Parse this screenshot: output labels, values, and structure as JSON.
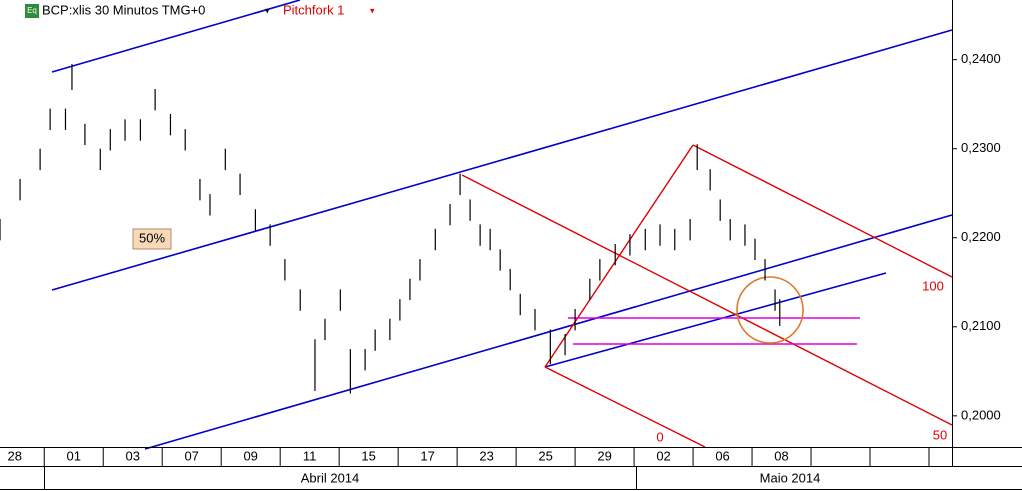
{
  "header": {
    "icon": "Eq",
    "title": "BCP:xlis 30 Minutos TMG+0",
    "study": "Pitchfork 1"
  },
  "chart_data": {
    "type": "ohlc",
    "categories": [
      "28",
      "01",
      "03",
      "07",
      "09",
      "11",
      "15",
      "17",
      "23",
      "25",
      "29",
      "02",
      "06",
      "08",
      null,
      null
    ],
    "months": [
      "Abril 2014",
      "Maio 2014"
    ],
    "xlim": [
      0.25,
      16.39
    ],
    "ylim": [
      0.1965,
      0.2467
    ],
    "yticks": [
      {
        "value": 0.2,
        "label": "0,2000"
      },
      {
        "value": 0.21,
        "label": "0,2100"
      },
      {
        "value": 0.22,
        "label": "0,2200"
      },
      {
        "value": 0.23,
        "label": "0,2300"
      },
      {
        "value": 0.24,
        "label": "0,2400"
      }
    ],
    "color": "#000000",
    "x": [
      0.25,
      0.59,
      0.93,
      1.1,
      1.36,
      1.47,
      1.69,
      1.95,
      2.12,
      2.37,
      2.63,
      2.88,
      3.14,
      3.39,
      3.64,
      3.81,
      4.07,
      4.32,
      4.58,
      4.83,
      5.08,
      5.34,
      5.59,
      5.76,
      6.02,
      6.19,
      6.44,
      6.61,
      6.86,
      7.03,
      7.2,
      7.37,
      7.63,
      7.88,
      8.05,
      8.22,
      8.39,
      8.56,
      8.73,
      8.9,
      9.07,
      9.32,
      9.58,
      9.83,
      10.0,
      10.25,
      10.42,
      10.68,
      10.93,
      11.19,
      11.44,
      11.69,
      11.95,
      12.07,
      12.29,
      12.46,
      12.63,
      12.88,
      13.05,
      13.22,
      13.39,
      13.47
    ],
    "high": [
      0.2221,
      0.2266,
      0.23,
      0.2345,
      0.2345,
      0.2395,
      0.2328,
      0.23,
      0.2322,
      0.2333,
      0.2333,
      0.2367,
      0.2339,
      0.2322,
      0.2266,
      0.2249,
      0.23,
      0.2272,
      0.2232,
      0.2215,
      0.2176,
      0.2142,
      0.2086,
      0.2109,
      0.2142,
      0.2075,
      0.2075,
      0.2097,
      0.2109,
      0.2131,
      0.2154,
      0.2176,
      0.221,
      0.2238,
      0.2272,
      0.2243,
      0.2215,
      0.221,
      0.2187,
      0.2165,
      0.2137,
      0.212,
      0.2097,
      0.2092,
      0.212,
      0.2154,
      0.2176,
      0.2193,
      0.2204,
      0.221,
      0.2215,
      0.221,
      0.2221,
      0.2305,
      0.2277,
      0.2243,
      0.2221,
      0.2215,
      0.2199,
      0.2176,
      0.2142,
      0.2131
    ],
    "low": [
      0.2197,
      0.2242,
      0.2276,
      0.2321,
      0.2321,
      0.2366,
      0.2304,
      0.2276,
      0.2298,
      0.2309,
      0.2309,
      0.2343,
      0.2315,
      0.2298,
      0.2242,
      0.2225,
      0.2276,
      0.2248,
      0.2208,
      0.2191,
      0.2152,
      0.2118,
      0.2028,
      0.2085,
      0.2118,
      0.2025,
      0.2051,
      0.2073,
      0.2085,
      0.2107,
      0.213,
      0.2152,
      0.2186,
      0.2214,
      0.2248,
      0.2219,
      0.2191,
      0.2186,
      0.2163,
      0.2141,
      0.2113,
      0.2096,
      0.2058,
      0.2068,
      0.2096,
      0.213,
      0.2152,
      0.2169,
      0.218,
      0.2186,
      0.2191,
      0.2186,
      0.2197,
      0.2276,
      0.2253,
      0.2219,
      0.2197,
      0.2191,
      0.2175,
      0.2152,
      0.2118,
      0.2101
    ]
  },
  "annotations": {
    "retracement": "50%",
    "fork_upper": "100",
    "fork_median": "50",
    "fork_lower": "0"
  }
}
